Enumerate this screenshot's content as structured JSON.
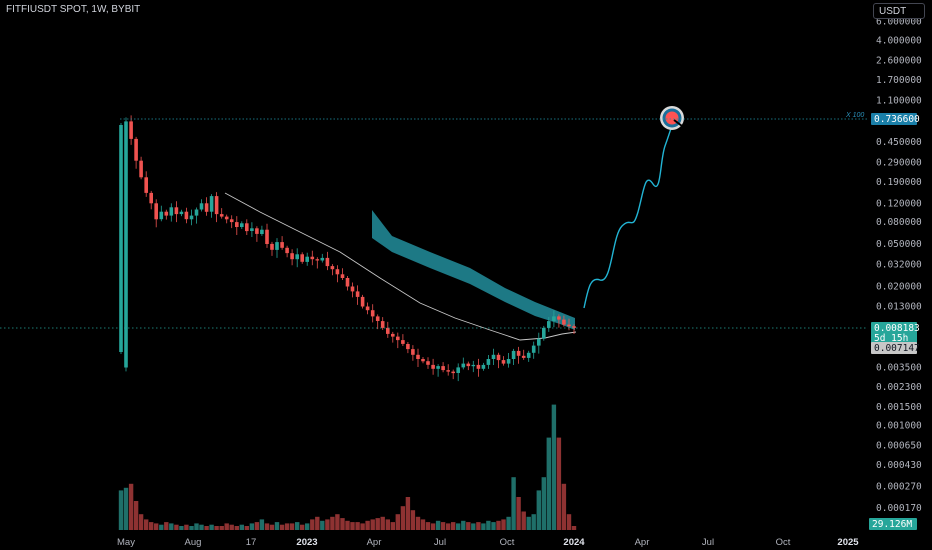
{
  "header": {
    "symbol": "FITFIUSDT SPOT, 1W, BYBIT",
    "currency_button": "USDT"
  },
  "annotations": {
    "target_multiplier": "X 100"
  },
  "price_tags": {
    "target": "0.736600",
    "last_price": "0.008183",
    "countdown": "5d 15h",
    "ma_value": "0.007147",
    "volume": "29.126M"
  },
  "colors": {
    "up": "#26a69a",
    "down": "#ef5350",
    "up_volume": "#1f6f69",
    "down_volume": "#8e3232",
    "ribbon": "#1f7f8c",
    "projection": "#22b4d4",
    "ma": "#c7c7c7",
    "target_tag": "#1a7fa8"
  },
  "chart_data": {
    "type": "candlestick",
    "symbol": "FITFIUSDT",
    "timeframe": "1W",
    "exchange": "BYBIT",
    "y_scale": "log",
    "y_ticks": [
      "6.000000",
      "4.000000",
      "2.600000",
      "1.700000",
      "1.100000",
      "0.450000",
      "0.290000",
      "0.190000",
      "0.120000",
      "0.080000",
      "0.050000",
      "0.032000",
      "0.020000",
      "0.013000",
      "0.003500",
      "0.002300",
      "0.001500",
      "0.001000",
      "0.000650",
      "0.000430",
      "0.000270",
      "0.000170"
    ],
    "x_ticks": [
      {
        "label": "May",
        "bold": false
      },
      {
        "label": "Aug",
        "bold": false
      },
      {
        "label": "17",
        "bold": false
      },
      {
        "label": "2023",
        "bold": true
      },
      {
        "label": "Apr",
        "bold": false
      },
      {
        "label": "Jul",
        "bold": false
      },
      {
        "label": "Oct",
        "bold": false
      },
      {
        "label": "2024",
        "bold": true
      },
      {
        "label": "Apr",
        "bold": false
      },
      {
        "label": "Jul",
        "bold": false
      },
      {
        "label": "Oct",
        "bold": false
      },
      {
        "label": "2025",
        "bold": true
      }
    ],
    "target_price": 0.7366,
    "last_price": 0.008183,
    "ma_last": 0.007147,
    "volume_last": "29.126M",
    "candles_close": [
      0.0035,
      0.7,
      0.48,
      0.3,
      0.21,
      0.15,
      0.12,
      0.085,
      0.1,
      0.092,
      0.11,
      0.095,
      0.1,
      0.085,
      0.092,
      0.105,
      0.12,
      0.1,
      0.14,
      0.095,
      0.09,
      0.085,
      0.08,
      0.072,
      0.078,
      0.066,
      0.07,
      0.062,
      0.068,
      0.05,
      0.044,
      0.052,
      0.046,
      0.041,
      0.036,
      0.04,
      0.034,
      0.038,
      0.036,
      0.035,
      0.037,
      0.031,
      0.029,
      0.026,
      0.024,
      0.02,
      0.018,
      0.016,
      0.013,
      0.012,
      0.0105,
      0.0095,
      0.0082,
      0.0072,
      0.0068,
      0.0063,
      0.0058,
      0.0052,
      0.0046,
      0.0042,
      0.004,
      0.0037,
      0.0034,
      0.0036,
      0.0033,
      0.0032,
      0.0031,
      0.0035,
      0.0038,
      0.0036,
      0.0037,
      0.0034,
      0.0037,
      0.0042,
      0.0046,
      0.0041,
      0.0038,
      0.0042,
      0.005,
      0.0045,
      0.0043,
      0.0048,
      0.0056,
      0.0065,
      0.0082,
      0.0095,
      0.0105,
      0.0098,
      0.0088,
      0.0085,
      0.0081832
    ],
    "volume_relative": [
      0.3,
      0.32,
      0.35,
      0.22,
      0.12,
      0.08,
      0.06,
      0.05,
      0.04,
      0.06,
      0.05,
      0.04,
      0.03,
      0.04,
      0.03,
      0.05,
      0.04,
      0.03,
      0.04,
      0.03,
      0.03,
      0.05,
      0.04,
      0.03,
      0.04,
      0.03,
      0.05,
      0.06,
      0.08,
      0.05,
      0.04,
      0.06,
      0.04,
      0.05,
      0.05,
      0.06,
      0.04,
      0.05,
      0.08,
      0.1,
      0.07,
      0.08,
      0.1,
      0.12,
      0.09,
      0.07,
      0.06,
      0.06,
      0.05,
      0.07,
      0.08,
      0.09,
      0.1,
      0.08,
      0.06,
      0.12,
      0.18,
      0.25,
      0.15,
      0.1,
      0.08,
      0.06,
      0.05,
      0.07,
      0.06,
      0.05,
      0.06,
      0.05,
      0.07,
      0.06,
      0.05,
      0.06,
      0.05,
      0.07,
      0.06,
      0.07,
      0.08,
      0.1,
      0.4,
      0.25,
      0.14,
      0.1,
      0.12,
      0.3,
      0.4,
      0.7,
      0.95,
      0.7,
      0.35,
      0.12,
      0.03
    ]
  }
}
